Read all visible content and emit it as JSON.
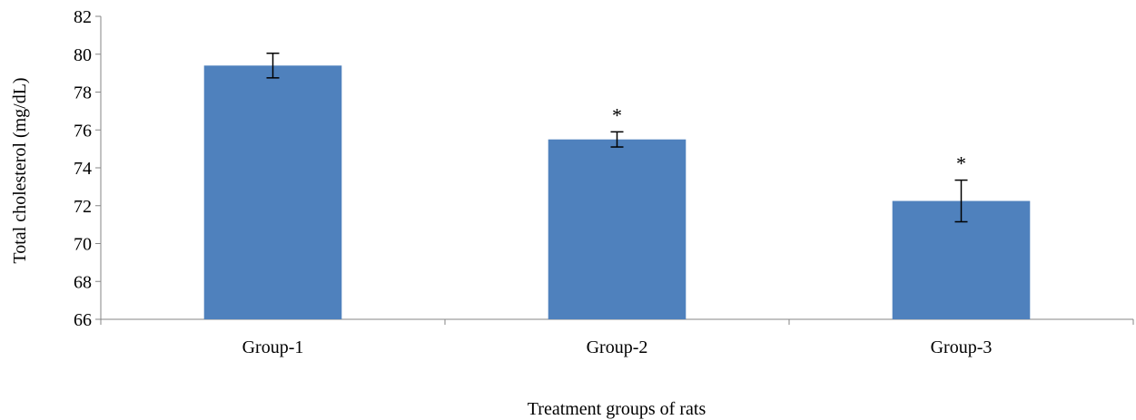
{
  "chart_data": {
    "type": "bar",
    "title": "",
    "xlabel": "Treatment groups of rats",
    "ylabel": "Total cholesterol (mg/dL)",
    "ylim": [
      66,
      82
    ],
    "yticks": [
      66,
      68,
      70,
      72,
      74,
      76,
      78,
      80,
      82
    ],
    "grid": false,
    "legend": "none",
    "categories": [
      "Group-1",
      "Group-2",
      "Group-3"
    ],
    "values": [
      79.4,
      75.5,
      72.25
    ],
    "error": [
      0.65,
      0.4,
      1.1
    ],
    "significance": [
      "",
      "*",
      "*"
    ],
    "bar_color": "#4F81BD"
  }
}
